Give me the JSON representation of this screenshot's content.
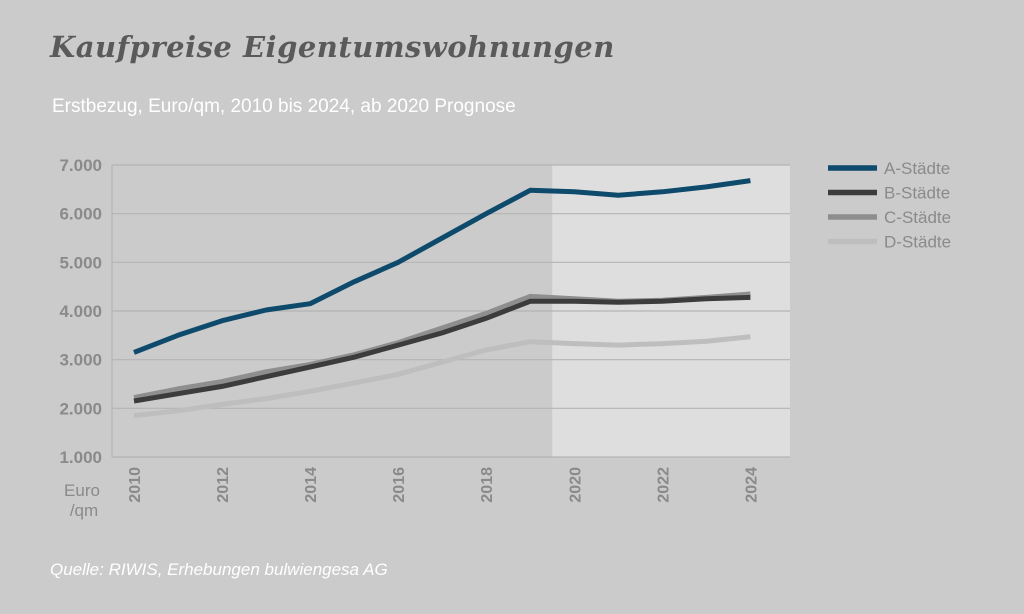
{
  "title": "Kaufpreise Eigentumswohnungen",
  "subtitle": "Erstbezug, Euro/qm, 2010 bis 2024, ab 2020 Prognose",
  "source": "Quelle: RIWIS, Erhebungen bulwiengesa AG",
  "colors": {
    "background": "#cbcbcb",
    "forecast_band": "#dedede",
    "gridline": "#b4b4b4"
  },
  "chart_data": {
    "type": "line",
    "title": "Kaufpreise Eigentumswohnungen",
    "subtitle": "Erstbezug, Euro/qm, 2010 bis 2024, ab 2020 Prognose",
    "y_unit_label_line1": "Euro",
    "y_unit_label_line2": "/qm",
    "x": [
      2010,
      2011,
      2012,
      2013,
      2014,
      2015,
      2016,
      2017,
      2018,
      2019,
      2020,
      2021,
      2022,
      2023,
      2024
    ],
    "x_tick_labels": [
      "2010",
      "2012",
      "2014",
      "2016",
      "2018",
      "2020",
      "2022",
      "2024"
    ],
    "x_tick_values": [
      2010,
      2012,
      2014,
      2016,
      2018,
      2020,
      2022,
      2024
    ],
    "y_tick_labels": [
      "1.000",
      "2.000",
      "3.000",
      "4.000",
      "5.000",
      "6.000",
      "7.000"
    ],
    "y_tick_values": [
      1000,
      2000,
      3000,
      4000,
      5000,
      6000,
      7000
    ],
    "ylim": [
      1000,
      7000
    ],
    "xlim": [
      2009.5,
      2024.9
    ],
    "forecast_start": 2019.5,
    "grid": true,
    "legend_position": "right",
    "series": [
      {
        "name": "A-Städte",
        "color": "#0e4a6b",
        "values": [
          3150,
          3500,
          3800,
          4020,
          4150,
          4600,
          5000,
          5500,
          6000,
          6480,
          6450,
          6380,
          6450,
          6550,
          6680
        ]
      },
      {
        "name": "B-Städte",
        "color": "#3c3c3c",
        "values": [
          2150,
          2300,
          2450,
          2650,
          2850,
          3050,
          3300,
          3550,
          3850,
          4200,
          4200,
          4180,
          4200,
          4250,
          4280
        ]
      },
      {
        "name": "C-Städte",
        "color": "#8e8e8e",
        "values": [
          2220,
          2400,
          2550,
          2750,
          2900,
          3100,
          3350,
          3650,
          3950,
          4300,
          4250,
          4200,
          4220,
          4280,
          4350
        ]
      },
      {
        "name": "D-Städte",
        "color": "#bebebe",
        "values": [
          1850,
          1950,
          2080,
          2200,
          2350,
          2520,
          2700,
          2950,
          3200,
          3370,
          3330,
          3300,
          3330,
          3380,
          3470
        ]
      }
    ]
  }
}
